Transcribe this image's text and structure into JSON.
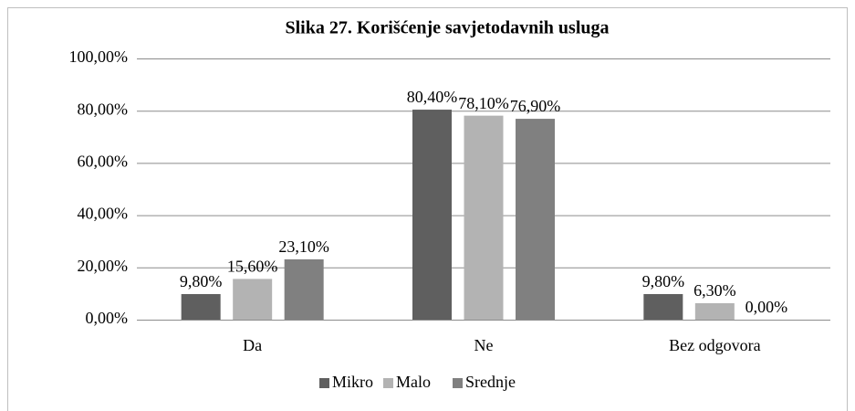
{
  "chart_data": {
    "type": "bar",
    "title": "Slika 27. Korišćenje savjetodavnih usluga",
    "categories": [
      "Da",
      "Ne",
      "Bez odgovora"
    ],
    "series": [
      {
        "name": "Mikro",
        "color": "#5f5f5f",
        "values": [
          9.8,
          80.4,
          9.8
        ],
        "value_labels": [
          "9,80%",
          "80,40%",
          "9,80%"
        ]
      },
      {
        "name": "Malo",
        "color": "#b3b3b3",
        "values": [
          15.6,
          78.1,
          6.3
        ],
        "value_labels": [
          "15,60%",
          "78,10%",
          "6,30%"
        ]
      },
      {
        "name": "Srednje",
        "color": "#808080",
        "values": [
          23.1,
          76.9,
          0
        ],
        "value_labels": [
          "23,10%",
          "76,90%",
          "0,00%"
        ]
      }
    ],
    "ylim": [
      0,
      100
    ],
    "yticks": [
      {
        "value": 0,
        "label": "0,00%"
      },
      {
        "value": 20,
        "label": "20,00%"
      },
      {
        "value": 40,
        "label": "40,00%"
      },
      {
        "value": 60,
        "label": "60,00%"
      },
      {
        "value": 80,
        "label": "80,00%"
      },
      {
        "value": 100,
        "label": "100,00%"
      }
    ],
    "grid": true,
    "legend": "bottom"
  }
}
